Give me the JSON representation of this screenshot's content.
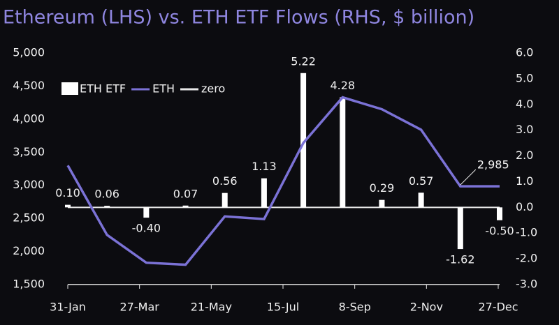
{
  "chart_data": {
    "type": "bar-line",
    "title": "Ethereum (LHS) vs. ETH ETF Flows (RHS, $ billion)",
    "xtick_labels": [
      "31-Jan",
      "27-Mar",
      "21-May",
      "15-Jul",
      "8-Sep",
      "2-Nov",
      "27-Dec"
    ],
    "series": [
      {
        "name": "ETH ETF",
        "type": "bar",
        "axis": "y2",
        "color": "#ffffff",
        "values": [
          0.1,
          0.06,
          -0.4,
          0.07,
          0.56,
          1.13,
          5.22,
          4.28,
          0.29,
          0.57,
          -1.62,
          -0.5
        ],
        "value_labels": [
          "0.10",
          "0.06",
          "-0.40",
          "0.07",
          "0.56",
          "1.13",
          "5.22",
          "4.28",
          "0.29",
          "0.57",
          "-1.62",
          "-0.50"
        ]
      },
      {
        "name": "ETH",
        "type": "line",
        "color": "#7b72d6",
        "values": [
          3300,
          2250,
          1830,
          1800,
          2530,
          2490,
          3640,
          4330,
          4150,
          3840,
          2985,
          2985
        ],
        "value_labels": [
          null,
          null,
          null,
          null,
          null,
          null,
          null,
          null,
          null,
          null,
          "2,985",
          null
        ]
      },
      {
        "name": "zero",
        "type": "line",
        "axis": "y2",
        "color": "#e8e8e8",
        "values": [
          0,
          0,
          0,
          0,
          0,
          0,
          0,
          0,
          0,
          0,
          0,
          0
        ]
      }
    ],
    "ylim": [
      1500,
      5000
    ],
    "yticks": [
      {
        "value": 1500,
        "label": "1,500"
      },
      {
        "value": 2000,
        "label": "2,000"
      },
      {
        "value": 2500,
        "label": "2,500"
      },
      {
        "value": 3000,
        "label": "3,000"
      },
      {
        "value": 3500,
        "label": "3,500"
      },
      {
        "value": 4000,
        "label": "4,000"
      },
      {
        "value": 4500,
        "label": "4,500"
      },
      {
        "value": 5000,
        "label": "5,000"
      }
    ],
    "y2lim": [
      -3,
      6
    ],
    "y2ticks": [
      {
        "value": -3,
        "label": "-3.0"
      },
      {
        "value": -2,
        "label": "-2.0"
      },
      {
        "value": -1,
        "label": "-1.0"
      },
      {
        "value": 0,
        "label": "0.0"
      },
      {
        "value": 1,
        "label": "1.0"
      },
      {
        "value": 2,
        "label": "2.0"
      },
      {
        "value": 3,
        "label": "3.0"
      },
      {
        "value": 4,
        "label": "4.0"
      },
      {
        "value": 5,
        "label": "5.0"
      },
      {
        "value": 6,
        "label": "6.0"
      }
    ]
  }
}
